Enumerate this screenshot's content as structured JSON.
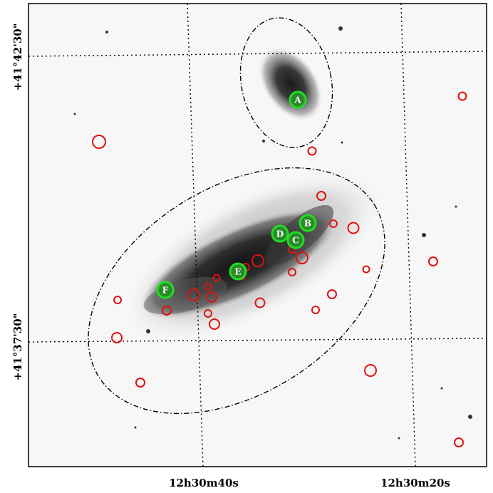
{
  "axes": {
    "ra_ticks": [
      "12h30m40s",
      "12h30m20s"
    ],
    "dec_ticks": [
      "+41°42'30\"",
      "+41°37'30\""
    ]
  },
  "labels": {
    "A": "A",
    "B": "B",
    "C": "C",
    "D": "D",
    "E": "E",
    "F": "F"
  },
  "colors": {
    "red_circles": "#e01010",
    "green_circles": "#22dd22",
    "frame": "#000000"
  }
}
